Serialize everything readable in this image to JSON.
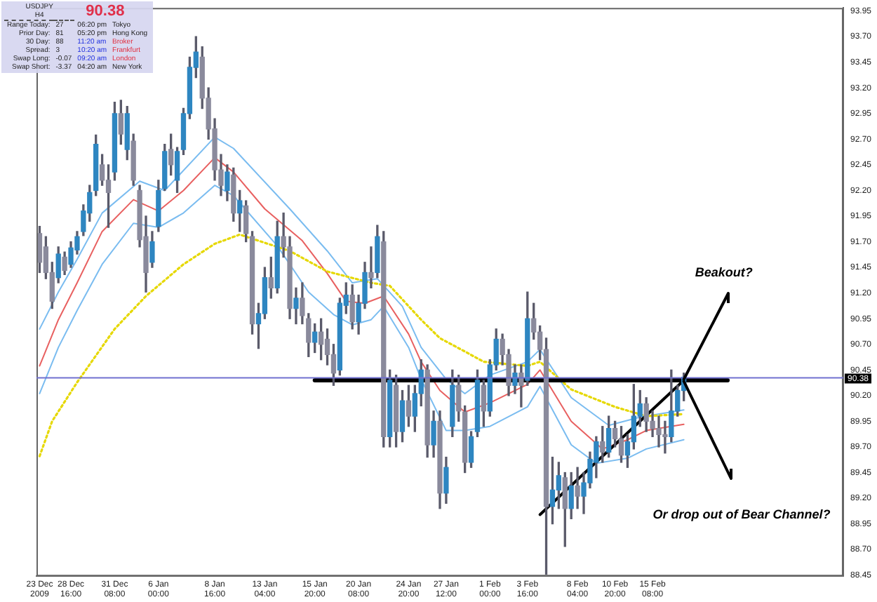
{
  "chart_data": {
    "type": "candlestick",
    "categories": [
      "23 Dec 2009",
      null,
      null,
      null,
      null,
      "28 Dec 16:00",
      null,
      null,
      null,
      null,
      null,
      null,
      "31 Dec 08:00",
      null,
      null,
      null,
      null,
      null,
      null,
      "6 Jan 00:00",
      null,
      null,
      null,
      null,
      null,
      null,
      null,
      null,
      "8 Jan 16:00",
      null,
      null,
      null,
      null,
      null,
      null,
      null,
      "13 Jan 04:00",
      null,
      null,
      null,
      null,
      null,
      null,
      null,
      "15 Jan 20:00",
      null,
      null,
      null,
      null,
      null,
      null,
      "20 Jan 08:00",
      null,
      null,
      null,
      null,
      null,
      null,
      null,
      "24 Jan 20:00",
      null,
      null,
      null,
      null,
      null,
      "27 Jan 12:00",
      null,
      null,
      null,
      null,
      null,
      null,
      "1 Feb 00:00",
      null,
      null,
      null,
      null,
      null,
      "3 Feb 16:00",
      null,
      null,
      null,
      null,
      null,
      null,
      null,
      "8 Feb 04:00",
      null,
      null,
      null,
      null,
      null,
      "10 Feb 20:00",
      null,
      null,
      null,
      null,
      null,
      "15 Feb 08:00",
      null,
      null,
      null,
      null,
      null,
      null,
      null,
      null,
      null,
      null,
      null,
      null,
      null,
      null,
      null,
      null,
      null,
      null,
      null,
      null,
      null,
      null,
      null,
      null,
      null,
      null,
      null,
      null,
      null,
      null
    ],
    "ohlc": [
      [
        91.78,
        91.85,
        91.4,
        91.5
      ],
      [
        91.65,
        91.75,
        91.34,
        91.4
      ],
      [
        91.4,
        91.5,
        91.05,
        91.12
      ],
      [
        91.35,
        91.65,
        91.3,
        91.58
      ],
      [
        91.55,
        91.6,
        91.38,
        91.42
      ],
      [
        91.48,
        91.7,
        91.45,
        91.64
      ],
      [
        91.62,
        91.8,
        91.58,
        91.75
      ],
      [
        91.8,
        92.06,
        91.76,
        92.0
      ],
      [
        91.98,
        92.25,
        91.9,
        92.18
      ],
      [
        92.2,
        92.74,
        92.15,
        92.65
      ],
      [
        92.45,
        92.55,
        92.25,
        92.3
      ],
      [
        92.3,
        92.45,
        91.84,
        92.18
      ],
      [
        92.38,
        93.06,
        92.3,
        92.95
      ],
      [
        92.95,
        93.08,
        92.65,
        92.75
      ],
      [
        92.6,
        93.02,
        92.5,
        92.95
      ],
      [
        92.68,
        92.75,
        92.25,
        92.3
      ],
      [
        92.2,
        92.25,
        91.65,
        91.72
      ],
      [
        91.75,
        91.95,
        91.21,
        91.4
      ],
      [
        91.5,
        91.8,
        91.45,
        91.7
      ],
      [
        91.85,
        92.3,
        91.8,
        92.2
      ],
      [
        92.22,
        92.65,
        92.2,
        92.58
      ],
      [
        92.6,
        92.75,
        92.35,
        92.45
      ],
      [
        92.3,
        92.62,
        92.18,
        92.58
      ],
      [
        92.6,
        93.0,
        92.55,
        92.95
      ],
      [
        92.95,
        93.5,
        92.9,
        93.4
      ],
      [
        93.4,
        93.7,
        93.3,
        93.55
      ],
      [
        93.5,
        93.6,
        93.0,
        93.1
      ],
      [
        93.1,
        93.2,
        92.7,
        92.8
      ],
      [
        92.8,
        92.9,
        92.3,
        92.4
      ],
      [
        92.4,
        92.55,
        92.15,
        92.25
      ],
      [
        92.2,
        92.45,
        92.1,
        92.38
      ],
      [
        92.35,
        92.42,
        91.9,
        91.98
      ],
      [
        91.98,
        92.2,
        91.8,
        92.1
      ],
      [
        92.05,
        92.1,
        91.7,
        91.78
      ],
      [
        91.75,
        91.8,
        90.8,
        90.9
      ],
      [
        90.9,
        91.1,
        90.66,
        91.0
      ],
      [
        91.0,
        91.45,
        90.95,
        91.35
      ],
      [
        91.35,
        91.55,
        91.15,
        91.25
      ],
      [
        91.25,
        91.9,
        91.2,
        91.75
      ],
      [
        91.75,
        91.98,
        91.55,
        91.65
      ],
      [
        91.65,
        91.75,
        90.95,
        91.05
      ],
      [
        91.05,
        91.25,
        90.9,
        91.15
      ],
      [
        91.15,
        91.3,
        90.9,
        90.98
      ],
      [
        90.95,
        91.0,
        90.58,
        90.72
      ],
      [
        90.72,
        90.9,
        90.62,
        90.82
      ],
      [
        90.82,
        90.95,
        90.55,
        90.7
      ],
      [
        90.75,
        90.85,
        90.5,
        90.6
      ],
      [
        90.6,
        90.7,
        90.3,
        90.42
      ],
      [
        90.45,
        91.15,
        90.4,
        91.1
      ],
      [
        91.08,
        91.3,
        91.0,
        91.18
      ],
      [
        91.18,
        91.28,
        90.85,
        90.92
      ],
      [
        90.92,
        91.18,
        90.8,
        91.1
      ],
      [
        91.1,
        91.5,
        91.05,
        91.4
      ],
      [
        91.4,
        91.65,
        91.25,
        91.35
      ],
      [
        91.4,
        91.86,
        91.35,
        91.75
      ],
      [
        91.7,
        91.8,
        89.7,
        89.8
      ],
      [
        89.8,
        90.45,
        89.7,
        90.35
      ],
      [
        90.3,
        90.4,
        89.7,
        89.85
      ],
      [
        89.85,
        90.25,
        89.75,
        90.15
      ],
      [
        90.15,
        90.3,
        89.9,
        90.0
      ],
      [
        90.0,
        90.3,
        89.85,
        90.22
      ],
      [
        90.22,
        90.55,
        90.1,
        90.45
      ],
      [
        90.45,
        90.5,
        89.6,
        89.72
      ],
      [
        89.72,
        90.05,
        89.6,
        89.95
      ],
      [
        89.95,
        90.05,
        89.1,
        89.25
      ],
      [
        89.25,
        89.6,
        89.15,
        89.5
      ],
      [
        89.9,
        90.45,
        89.8,
        90.3
      ],
      [
        90.3,
        90.4,
        89.95,
        90.05
      ],
      [
        90.04,
        90.1,
        89.45,
        89.55
      ],
      [
        89.55,
        89.85,
        89.5,
        89.8
      ],
      [
        89.85,
        90.45,
        89.8,
        90.35
      ],
      [
        90.3,
        90.35,
        89.9,
        90.05
      ],
      [
        90.05,
        90.55,
        90.0,
        90.5
      ],
      [
        90.5,
        90.85,
        90.45,
        90.75
      ],
      [
        90.75,
        90.8,
        90.5,
        90.6
      ],
      [
        90.6,
        90.65,
        90.2,
        90.3
      ],
      [
        90.3,
        90.5,
        90.22,
        90.42
      ],
      [
        90.42,
        90.5,
        90.09,
        90.3
      ],
      [
        90.35,
        91.21,
        90.3,
        90.95
      ],
      [
        90.95,
        91.1,
        90.75,
        90.82
      ],
      [
        90.82,
        90.88,
        90.55,
        90.65
      ],
      [
        90.65,
        90.76,
        88.46,
        89.12
      ],
      [
        89.12,
        89.6,
        88.95,
        89.28
      ],
      [
        89.28,
        89.55,
        89.1,
        89.42
      ],
      [
        89.4,
        89.45,
        88.73,
        89.1
      ],
      [
        89.1,
        89.45,
        89.0,
        89.32
      ],
      [
        89.32,
        89.5,
        89.1,
        89.22
      ],
      [
        89.22,
        89.45,
        89.05,
        89.35
      ],
      [
        89.35,
        89.65,
        89.3,
        89.58
      ],
      [
        89.55,
        89.8,
        89.4,
        89.75
      ],
      [
        89.75,
        89.9,
        89.55,
        89.65
      ],
      [
        89.65,
        90.0,
        89.6,
        89.88
      ],
      [
        89.88,
        89.95,
        89.7,
        89.78
      ],
      [
        89.78,
        89.9,
        89.55,
        89.62
      ],
      [
        89.62,
        89.82,
        89.5,
        89.75
      ],
      [
        89.75,
        90.31,
        89.68,
        90.0
      ],
      [
        90.0,
        90.25,
        89.9,
        90.12
      ],
      [
        90.12,
        90.18,
        89.85,
        89.95
      ],
      [
        89.95,
        90.05,
        89.8,
        89.88
      ],
      [
        89.88,
        90.0,
        89.7,
        89.82
      ],
      [
        89.82,
        89.95,
        89.64,
        89.8
      ],
      [
        89.8,
        90.45,
        89.75,
        90.05
      ],
      [
        90.05,
        90.3,
        90.0,
        90.25
      ],
      [
        90.25,
        90.42,
        90.15,
        90.38
      ],
      null,
      null,
      null,
      null,
      null,
      null,
      null,
      null,
      null,
      null,
      null,
      null,
      null,
      null,
      null,
      null,
      null,
      null,
      null,
      null,
      null,
      null,
      null,
      null,
      null
    ],
    "series": [
      {
        "type": "line",
        "color": "#e6d800",
        "line_style": "dotted",
        "values": [
          89.61,
          null,
          89.95,
          null,
          null,
          null,
          90.33,
          null,
          null,
          null,
          null,
          null,
          90.85,
          null,
          null,
          null,
          null,
          91.17,
          null,
          null,
          null,
          null,
          null,
          91.48,
          null,
          null,
          null,
          null,
          91.68,
          null,
          null,
          null,
          91.77,
          null,
          null,
          null,
          null,
          null,
          null,
          null,
          91.61,
          null,
          null,
          null,
          null,
          null,
          91.41,
          null,
          null,
          null,
          null,
          null,
          null,
          91.3,
          null,
          null,
          91.27,
          null,
          null,
          null,
          null,
          90.94,
          null,
          null,
          90.76,
          null,
          null,
          null,
          90.63,
          null,
          null,
          90.53,
          null,
          null,
          null,
          null,
          null,
          null,
          90.49,
          null,
          90.53,
          null,
          null,
          null,
          null,
          90.26,
          null,
          null,
          null,
          null,
          null,
          null,
          90.09,
          null,
          null,
          null,
          null,
          90.0,
          null,
          null,
          null,
          null,
          null,
          90.02,
          null,
          null,
          null,
          null,
          null,
          null,
          null,
          null,
          null,
          null,
          null,
          null,
          null,
          null,
          null,
          null,
          null,
          null,
          null,
          null,
          null,
          null,
          null,
          null,
          null
        ]
      },
      {
        "type": "line",
        "color": "#e86060",
        "values": [
          90.49,
          null,
          null,
          90.94,
          null,
          null,
          91.3,
          null,
          null,
          null,
          91.8,
          null,
          null,
          null,
          null,
          92.11,
          null,
          null,
          null,
          92.0,
          null,
          null,
          null,
          92.2,
          null,
          null,
          null,
          null,
          92.52,
          null,
          null,
          92.38,
          null,
          null,
          null,
          null,
          92.02,
          null,
          null,
          null,
          null,
          null,
          91.71,
          null,
          null,
          null,
          91.39,
          null,
          null,
          91.12,
          null,
          null,
          91.1,
          null,
          null,
          91.17,
          null,
          null,
          null,
          90.8,
          null,
          90.53,
          null,
          null,
          90.25,
          null,
          null,
          null,
          90.04,
          null,
          null,
          null,
          90.13,
          null,
          null,
          null,
          null,
          null,
          90.31,
          null,
          90.45,
          null,
          null,
          null,
          null,
          89.95,
          null,
          null,
          null,
          null,
          89.68,
          null,
          null,
          null,
          89.77,
          null,
          null,
          89.86,
          null,
          null,
          null,
          null,
          null,
          89.92,
          null,
          null,
          null,
          null,
          null,
          null,
          null,
          null,
          null,
          null,
          null,
          null,
          null,
          null,
          null,
          null,
          null,
          null,
          null,
          null,
          null,
          null,
          null,
          null,
          null
        ]
      },
      {
        "type": "line",
        "color": "#7abcf0",
        "values": [
          90.85,
          null,
          null,
          91.21,
          null,
          null,
          91.53,
          null,
          null,
          null,
          91.98,
          null,
          null,
          null,
          null,
          null,
          92.29,
          null,
          null,
          null,
          92.2,
          null,
          null,
          null,
          null,
          null,
          null,
          null,
          92.72,
          null,
          null,
          92.61,
          null,
          null,
          null,
          null,
          null,
          null,
          null,
          null,
          92.02,
          null,
          null,
          null,
          null,
          null,
          91.61,
          null,
          null,
          null,
          91.3,
          null,
          null,
          null,
          91.34,
          null,
          null,
          null,
          91.07,
          null,
          null,
          90.67,
          null,
          null,
          null,
          90.36,
          null,
          null,
          90.22,
          null,
          null,
          null,
          90.4,
          null,
          null,
          null,
          null,
          null,
          90.53,
          null,
          90.65,
          null,
          null,
          null,
          null,
          90.18,
          null,
          null,
          null,
          null,
          null,
          89.91,
          null,
          null,
          null,
          null,
          89.99,
          null,
          null,
          null,
          null,
          null,
          null,
          90.06,
          null,
          null,
          null,
          null,
          null,
          null,
          null,
          null,
          null,
          null,
          null,
          null,
          null,
          null,
          null,
          null,
          null,
          null,
          null,
          null,
          null,
          null,
          null,
          null,
          null
        ]
      },
      {
        "type": "line",
        "color": "#7abcf0",
        "values": [
          90.22,
          null,
          null,
          90.67,
          null,
          null,
          91.03,
          null,
          null,
          null,
          91.48,
          null,
          null,
          null,
          null,
          91.88,
          null,
          null,
          null,
          91.84,
          null,
          null,
          null,
          91.98,
          null,
          null,
          null,
          null,
          92.25,
          null,
          null,
          92.15,
          null,
          null,
          null,
          null,
          null,
          null,
          91.66,
          null,
          null,
          null,
          null,
          91.21,
          null,
          null,
          null,
          90.99,
          null,
          null,
          90.89,
          null,
          null,
          90.94,
          null,
          91.07,
          null,
          null,
          null,
          90.67,
          null,
          90.36,
          null,
          null,
          null,
          89.86,
          null,
          null,
          89.86,
          null,
          null,
          null,
          89.9,
          null,
          null,
          null,
          null,
          null,
          90.09,
          null,
          90.29,
          null,
          null,
          null,
          null,
          89.72,
          null,
          null,
          null,
          89.54,
          null,
          null,
          null,
          null,
          89.59,
          null,
          null,
          89.68,
          null,
          null,
          null,
          null,
          null,
          89.77,
          null,
          null,
          null,
          null,
          null,
          null,
          null,
          null,
          null,
          null,
          null,
          null,
          null,
          null,
          null,
          null,
          null,
          null,
          null,
          null,
          null,
          null,
          null,
          null,
          null
        ]
      },
      {
        "type": "line",
        "color": "#000000",
        "values": [
          null,
          null,
          null,
          null,
          null,
          null,
          null,
          null,
          null,
          null,
          null,
          null,
          null,
          null,
          null,
          null,
          null,
          null,
          null,
          null,
          null,
          null,
          null,
          null,
          null,
          null,
          null,
          null,
          null,
          null,
          null,
          null,
          null,
          null,
          null,
          null,
          null,
          null,
          null,
          null,
          null,
          null,
          null,
          null,
          90.35,
          null,
          null,
          null,
          null,
          null,
          null,
          null,
          null,
          null,
          null,
          null,
          null,
          null,
          null,
          null,
          null,
          null,
          null,
          null,
          null,
          null,
          null,
          null,
          null,
          null,
          null,
          null,
          null,
          null,
          null,
          null,
          null,
          null,
          null,
          null,
          null,
          null,
          null,
          null,
          null,
          null,
          null,
          null,
          null,
          null,
          null,
          null,
          null,
          null,
          null,
          null,
          null,
          null,
          null,
          null,
          null,
          null,
          null,
          null,
          null,
          null,
          null,
          null,
          null,
          null,
          90.35,
          null,
          null,
          null,
          null,
          null,
          null,
          null,
          null,
          null,
          null,
          null,
          null,
          null,
          null,
          null,
          null,
          null,
          null
        ]
      },
      {
        "type": "line",
        "color": "#000000",
        "values": [
          null,
          null,
          null,
          null,
          null,
          null,
          null,
          null,
          null,
          null,
          null,
          null,
          null,
          null,
          null,
          null,
          null,
          null,
          null,
          null,
          null,
          null,
          null,
          null,
          null,
          null,
          null,
          null,
          null,
          null,
          null,
          null,
          null,
          null,
          null,
          null,
          null,
          null,
          null,
          null,
          null,
          null,
          null,
          null,
          null,
          null,
          null,
          null,
          null,
          null,
          null,
          null,
          null,
          null,
          null,
          null,
          null,
          null,
          null,
          null,
          null,
          null,
          null,
          null,
          null,
          null,
          null,
          null,
          null,
          null,
          null,
          null,
          null,
          null,
          null,
          null,
          null,
          null,
          null,
          null,
          89.04,
          null,
          null,
          null,
          null,
          null,
          null,
          null,
          null,
          null,
          null,
          null,
          null,
          null,
          null,
          null,
          null,
          null,
          null,
          null,
          null,
          null,
          null,
          90.35,
          null,
          null,
          null,
          null,
          null,
          null,
          null,
          null,
          null,
          null,
          null,
          null,
          null,
          null,
          null,
          null,
          null,
          null,
          null,
          null,
          null,
          null,
          null,
          null,
          null
        ]
      }
    ],
    "marker": "none",
    "ylim": [
      88.44,
      93.98
    ],
    "yticks": [
      88.45,
      {
        "value": 88.7,
        "label": "88.70"
      },
      88.95,
      {
        "value": 89.2,
        "label": "89.20"
      },
      89.45,
      {
        "value": 89.7,
        "label": "89.70"
      },
      89.95,
      {
        "value": 90.2,
        "label": "90.20"
      },
      90.45,
      {
        "value": 90.7,
        "label": "90.70"
      },
      90.95,
      {
        "value": 91.2,
        "label": "91.20"
      },
      91.45,
      {
        "value": 91.7,
        "label": "91.70"
      },
      91.95,
      {
        "value": 92.2,
        "label": "92.20"
      },
      92.45,
      {
        "value": 92.7,
        "label": "92.70"
      },
      92.95,
      {
        "value": 93.2,
        "label": "93.20"
      },
      93.45,
      {
        "value": 93.7,
        "label": "93.70"
      },
      93.95
    ],
    "ref_lines": [
      {
        "axis": "y",
        "value": 90.38,
        "label": "90.38",
        "color": "#7070d0"
      }
    ],
    "annotations": [
      "USDJPY",
      "H4",
      "90.38",
      "Range Today:",
      "27",
      "06:20 pm",
      "Tokyo",
      "Prior Day:",
      "81",
      "05:20 pm",
      "Hong Kong",
      "30 Day:",
      "88",
      "11:20 am",
      "Broker",
      "Spread:",
      "3",
      "10:20 am",
      "Frankfurt",
      "Swap Long:",
      "-0.07",
      "09:20 am",
      "London",
      "Swap Short:",
      "-3.37",
      "04:20 am",
      "New York",
      "Beakout?",
      "Or drop out of Bear Channel?"
    ],
    "legend": false,
    "grid": false
  }
}
